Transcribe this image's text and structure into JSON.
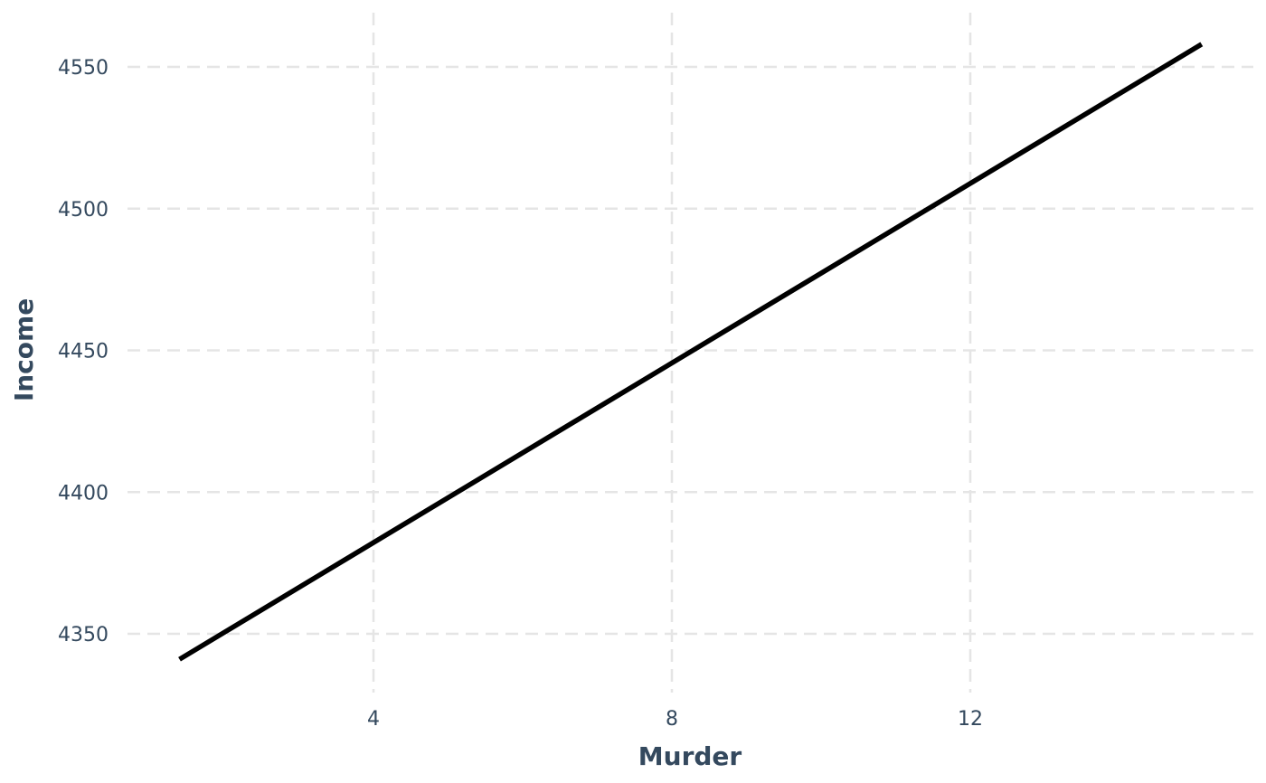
{
  "chart_data": {
    "type": "line",
    "title": "",
    "xlabel": "Murder",
    "ylabel": "Income",
    "xlim": [
      1.4,
      15.2
    ],
    "ylim": [
      4326,
      4569
    ],
    "x_ticks": [
      4,
      8,
      12
    ],
    "y_ticks": [
      4350,
      4400,
      4450,
      4500,
      4550
    ],
    "grid": true,
    "series": [
      {
        "color": "#000000",
        "x": [
          1.4,
          15.1
        ],
        "y": [
          4341,
          4558
        ]
      }
    ]
  }
}
